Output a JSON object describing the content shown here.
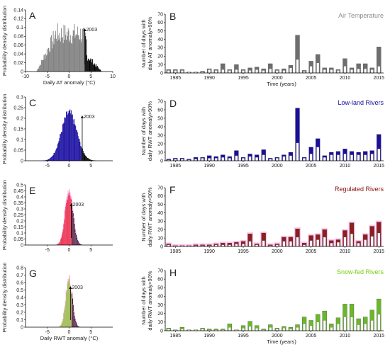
{
  "figure": {
    "panels_hist": [
      {
        "letter": "A",
        "annotation": "2003",
        "xlabel": "Daily AT anomaly (°C)",
        "ylabel": "Probability density distribution",
        "xlim": [
          -10,
          10
        ],
        "xticks": [
          -10,
          -5,
          0,
          5,
          10
        ],
        "xtick_labels": [
          "-10",
          "-5",
          "0",
          "5",
          "10"
        ],
        "ylim": [
          0,
          0.14
        ],
        "yticks": [
          0,
          0.02,
          0.04,
          0.06,
          0.08,
          0.1,
          0.12,
          0.14
        ],
        "ytick_labels": [
          "0",
          "0.02",
          "0.04",
          "0.06",
          "0.08",
          "0.1",
          "0.12",
          "0.14"
        ],
        "fill_color": "#7f7f7f",
        "tail_color": "#000000",
        "threshold": 3.6,
        "annot_x": 3.6,
        "dist": {
          "type": "noisy-trapezoid",
          "peak": 0.11,
          "lo": -7.5,
          "hi": 7.5
        }
      },
      {
        "letter": "C",
        "annotation": "2003",
        "xlabel": "",
        "ylabel": "Probability density distribution",
        "xlim": [
          -10,
          10
        ],
        "xticks": [
          -5,
          0,
          5
        ],
        "xtick_labels": [
          "-5",
          "0",
          "5"
        ],
        "ylim": [
          0,
          0.3
        ],
        "yticks": [
          0,
          0.05,
          0.1,
          0.15,
          0.2,
          0.25,
          0.3
        ],
        "ytick_labels": [
          "0",
          "0.05",
          "0.1",
          "0.15",
          "0.2",
          "0.25",
          "0.3"
        ],
        "fill_color": "#1a0fa0",
        "tail_color": "#000000",
        "threshold": 2.8,
        "annot_x": 3.0,
        "dist": {
          "type": "gauss",
          "peak": 0.225,
          "sigma": 1.8,
          "mean": 0
        }
      },
      {
        "letter": "E",
        "annotation": "2003",
        "xlabel": "",
        "ylabel": "Probability density distribution",
        "xlim": [
          -10,
          10
        ],
        "xticks": [
          -5,
          0,
          5
        ],
        "xtick_labels": [
          "-5",
          "0",
          "5"
        ],
        "ylim": [
          0,
          0.5
        ],
        "yticks": [
          0,
          0.05,
          0.1,
          0.15,
          0.2,
          0.25,
          0.3,
          0.35,
          0.4,
          0.45,
          0.5
        ],
        "ytick_labels": [
          "0",
          "0.05",
          "0.1",
          "0.15",
          "0.2",
          "0.25",
          "0.3",
          "0.35",
          "0.4",
          "0.45",
          "0.5"
        ],
        "fill_color": "#e00000",
        "tail_color": "#000000",
        "threshold": 0.6,
        "annot_x": 0.5,
        "halo_color": "#ff9be0",
        "dist": {
          "type": "gauss",
          "peak": 0.44,
          "sigma": 0.9,
          "mean": 0
        }
      },
      {
        "letter": "G",
        "annotation": "2003",
        "xlabel": "Daily RWT anomaly (°C)",
        "ylabel": "Probability density distribution",
        "xlim": [
          -10,
          10
        ],
        "xticks": [
          -5,
          0,
          5
        ],
        "xtick_labels": [
          "-5",
          "0",
          "5"
        ],
        "ylim": [
          0,
          0.8
        ],
        "yticks": [
          0,
          0.1,
          0.2,
          0.3,
          0.4,
          0.5,
          0.6,
          0.7,
          0.8
        ],
        "ytick_labels": [
          "0",
          "0.1",
          "0.2",
          "0.3",
          "0.4",
          "0.5",
          "0.6",
          "0.7",
          "0.8"
        ],
        "fill_color": "#66dd00",
        "tail_color": "#000000",
        "threshold": 0.6,
        "annot_x": 0.3,
        "halo_color": "#ff9be0",
        "dist": {
          "type": "gauss",
          "peak": 0.62,
          "sigma": 0.75,
          "mean": 0
        }
      }
    ],
    "panels_bar": [
      {
        "letter": "B",
        "title": "Air Temperature",
        "title_color": "#8c8c8c",
        "ylabel_lines": [
          "Number of days with",
          "daily AT anomaly>90%"
        ],
        "xlabel": "Time (years)",
        "ylim": [
          0,
          70
        ],
        "yticks": [
          0,
          10,
          20,
          30,
          40,
          50,
          60,
          70
        ],
        "fill_color": "#6e6e6e",
        "light_color": "#ffffff",
        "years": [
          1984,
          1985,
          1986,
          1987,
          1988,
          1989,
          1990,
          1991,
          1992,
          1993,
          1994,
          1995,
          1996,
          1997,
          1998,
          1999,
          2000,
          2001,
          2002,
          2003,
          2004,
          2005,
          2006,
          2007,
          2008,
          2009,
          2010,
          2011,
          2012,
          2013,
          2014,
          2015
        ],
        "totals": [
          4,
          4,
          4,
          1,
          1,
          2,
          5,
          4,
          11,
          4,
          10,
          4,
          6,
          7,
          5,
          11,
          4,
          5,
          9,
          45,
          3,
          14,
          22,
          6,
          6,
          4,
          17,
          6,
          11,
          11,
          6,
          31
        ],
        "inner": [
          3,
          3,
          3,
          1,
          1,
          1,
          4,
          3,
          4,
          3,
          4,
          3,
          3,
          4,
          3,
          5,
          3,
          3,
          6,
          16,
          2,
          8,
          12,
          4,
          4,
          3,
          8,
          4,
          5,
          5,
          4,
          8
        ]
      },
      {
        "letter": "D",
        "title": "Low-land Rivers",
        "title_color": "#1a0f9c",
        "ylabel_lines": [
          "Number of days with",
          "daily RWT anomaly>90%"
        ],
        "xlabel": "",
        "ylim": [
          0,
          70
        ],
        "yticks": [
          0,
          10,
          20,
          30,
          40,
          50,
          60,
          70
        ],
        "fill_color": "#1a0f9c",
        "light_color": "#ffffff",
        "years": [
          1984,
          1985,
          1986,
          1987,
          1988,
          1989,
          1990,
          1991,
          1992,
          1993,
          1994,
          1995,
          1996,
          1997,
          1998,
          1999,
          2000,
          2001,
          2002,
          2003,
          2004,
          2005,
          2006,
          2007,
          2008,
          2009,
          2010,
          2011,
          2012,
          2013,
          2014,
          2015
        ],
        "totals": [
          2,
          3,
          3,
          2,
          4,
          4,
          6,
          5,
          7,
          5,
          12,
          4,
          8,
          7,
          13,
          3,
          4,
          7,
          10,
          62,
          4,
          16,
          26,
          6,
          10,
          11,
          14,
          11,
          10,
          11,
          12,
          31
        ],
        "inner": [
          1,
          2,
          2,
          1,
          2,
          3,
          3,
          3,
          4,
          3,
          6,
          3,
          5,
          4,
          7,
          2,
          3,
          5,
          6,
          21,
          3,
          8,
          16,
          4,
          7,
          7,
          8,
          7,
          7,
          7,
          8,
          14
        ]
      },
      {
        "letter": "F",
        "title": "Regulated Rivers",
        "title_color": "#8c1010",
        "ylabel_lines": [
          "Number of days with",
          "daily RWT anomaly>90%"
        ],
        "xlabel": "",
        "ylim": [
          0,
          70
        ],
        "yticks": [
          0,
          10,
          20,
          30,
          40,
          50,
          60,
          70
        ],
        "fill_color": "#8c1f1f",
        "light_color": "#ffffff",
        "halo_color": "#ffb3e6",
        "years": [
          1984,
          1985,
          1986,
          1987,
          1988,
          1989,
          1990,
          1991,
          1992,
          1993,
          1994,
          1995,
          1996,
          1997,
          1998,
          1999,
          2000,
          2001,
          2002,
          2003,
          2004,
          2005,
          2006,
          2007,
          2008,
          2009,
          2010,
          2011,
          2012,
          2013,
          2014,
          2015
        ],
        "totals": [
          3,
          1,
          1,
          1,
          2,
          2,
          2,
          3,
          4,
          4,
          5,
          6,
          15,
          3,
          16,
          2,
          3,
          11,
          11,
          21,
          4,
          13,
          14,
          20,
          7,
          8,
          19,
          28,
          6,
          14,
          24,
          29
        ],
        "inner": [
          2,
          1,
          1,
          1,
          1,
          1,
          1,
          2,
          2,
          2,
          3,
          3,
          6,
          2,
          7,
          1,
          2,
          6,
          6,
          11,
          2,
          7,
          8,
          11,
          4,
          5,
          11,
          15,
          4,
          8,
          12,
          16
        ]
      },
      {
        "letter": "H",
        "title": "Snow-fed Rivers",
        "title_color": "#77cc11",
        "ylabel_lines": [
          "Number of days with",
          "daily RWT anomaly>90%"
        ],
        "xlabel": "Time (years)",
        "ylim": [
          0,
          70
        ],
        "yticks": [
          0,
          10,
          20,
          30,
          40,
          50,
          60,
          70
        ],
        "fill_color": "#6ab82a",
        "light_color": "#ffffff",
        "years": [
          1984,
          1985,
          1986,
          1987,
          1988,
          1989,
          1990,
          1991,
          1992,
          1993,
          1994,
          1995,
          1996,
          1997,
          1998,
          1999,
          2000,
          2001,
          2002,
          2003,
          2004,
          2005,
          2006,
          2007,
          2008,
          2009,
          2010,
          2011,
          2012,
          2013,
          2014,
          2015
        ],
        "totals": [
          3,
          1,
          4,
          1,
          1,
          3,
          2,
          2,
          2,
          8,
          1,
          6,
          11,
          6,
          2,
          7,
          3,
          5,
          4,
          7,
          16,
          12,
          19,
          23,
          8,
          15,
          31,
          31,
          14,
          16,
          24,
          37
        ],
        "inner": [
          2,
          1,
          2,
          1,
          1,
          2,
          1,
          1,
          1,
          4,
          1,
          3,
          5,
          3,
          1,
          4,
          2,
          3,
          2,
          4,
          8,
          6,
          10,
          12,
          4,
          8,
          16,
          16,
          7,
          8,
          12,
          19
        ]
      }
    ]
  },
  "chart_data": [
    {
      "type": "area",
      "title": "",
      "xlabel": "Daily AT anomaly (°C)",
      "ylabel": "Probability density distribution",
      "xlim": [
        -10,
        10
      ],
      "ylim": [
        0,
        0.14
      ],
      "annotation": "2003",
      "annotation_x": 3.6,
      "shape": "broad distribution peaking ~0.11 between -7.5 and 7.5"
    },
    {
      "type": "bar",
      "title": "Air Temperature",
      "xlabel": "Time (years)",
      "ylabel": "Number of days with daily AT anomaly>90%",
      "x": [
        1984,
        1985,
        1986,
        1987,
        1988,
        1989,
        1990,
        1991,
        1992,
        1993,
        1994,
        1995,
        1996,
        1997,
        1998,
        1999,
        2000,
        2001,
        2002,
        2003,
        2004,
        2005,
        2006,
        2007,
        2008,
        2009,
        2010,
        2011,
        2012,
        2013,
        2014,
        2015
      ],
      "values": [
        4,
        4,
        4,
        1,
        1,
        2,
        5,
        4,
        11,
        4,
        10,
        4,
        6,
        7,
        5,
        11,
        4,
        5,
        9,
        45,
        3,
        14,
        22,
        6,
        6,
        4,
        17,
        6,
        11,
        11,
        6,
        31
      ],
      "ylim": [
        0,
        70
      ]
    },
    {
      "type": "area",
      "title": "",
      "xlabel": "",
      "ylabel": "Probability density distribution",
      "xlim": [
        -10,
        10
      ],
      "ylim": [
        0,
        0.3
      ],
      "annotation": "2003",
      "annotation_x": 3.0,
      "shape": "gaussian peak ~0.225"
    },
    {
      "type": "bar",
      "title": "Low-land Rivers",
      "xlabel": "",
      "ylabel": "Number of days with daily RWT anomaly>90%",
      "x": [
        1984,
        1985,
        1986,
        1987,
        1988,
        1989,
        1990,
        1991,
        1992,
        1993,
        1994,
        1995,
        1996,
        1997,
        1998,
        1999,
        2000,
        2001,
        2002,
        2003,
        2004,
        2005,
        2006,
        2007,
        2008,
        2009,
        2010,
        2011,
        2012,
        2013,
        2014,
        2015
      ],
      "values": [
        2,
        3,
        3,
        2,
        4,
        4,
        6,
        5,
        7,
        5,
        12,
        4,
        8,
        7,
        13,
        3,
        4,
        7,
        10,
        62,
        4,
        16,
        26,
        6,
        10,
        11,
        14,
        11,
        10,
        11,
        12,
        31
      ],
      "ylim": [
        0,
        70
      ]
    },
    {
      "type": "area",
      "title": "",
      "xlabel": "",
      "ylabel": "Probability density distribution",
      "xlim": [
        -10,
        10
      ],
      "ylim": [
        0,
        0.5
      ],
      "annotation": "2003",
      "annotation_x": 0.5,
      "shape": "narrow gaussian peak ~0.44"
    },
    {
      "type": "bar",
      "title": "Regulated Rivers",
      "xlabel": "",
      "ylabel": "Number of days with daily RWT anomaly>90%",
      "x": [
        1984,
        1985,
        1986,
        1987,
        1988,
        1989,
        1990,
        1991,
        1992,
        1993,
        1994,
        1995,
        1996,
        1997,
        1998,
        1999,
        2000,
        2001,
        2002,
        2003,
        2004,
        2005,
        2006,
        2007,
        2008,
        2009,
        2010,
        2011,
        2012,
        2013,
        2014,
        2015
      ],
      "values": [
        3,
        1,
        1,
        1,
        2,
        2,
        2,
        3,
        4,
        4,
        5,
        6,
        15,
        3,
        16,
        2,
        3,
        11,
        11,
        21,
        4,
        13,
        14,
        20,
        7,
        8,
        19,
        28,
        6,
        14,
        24,
        29
      ],
      "ylim": [
        0,
        70
      ]
    },
    {
      "type": "area",
      "title": "",
      "xlabel": "Daily RWT anomaly (°C)",
      "ylabel": "Probability density distribution",
      "xlim": [
        -10,
        10
      ],
      "ylim": [
        0,
        0.8
      ],
      "annotation": "2003",
      "annotation_x": 0.3,
      "shape": "narrow gaussian peak ~0.62"
    },
    {
      "type": "bar",
      "title": "Snow-fed Rivers",
      "xlabel": "Time (years)",
      "ylabel": "Number of days with daily RWT anomaly>90%",
      "x": [
        1984,
        1985,
        1986,
        1987,
        1988,
        1989,
        1990,
        1991,
        1992,
        1993,
        1994,
        1995,
        1996,
        1997,
        1998,
        1999,
        2000,
        2001,
        2002,
        2003,
        2004,
        2005,
        2006,
        2007,
        2008,
        2009,
        2010,
        2011,
        2012,
        2013,
        2014,
        2015
      ],
      "values": [
        3,
        1,
        4,
        1,
        1,
        3,
        2,
        2,
        2,
        8,
        1,
        6,
        11,
        6,
        2,
        7,
        3,
        5,
        4,
        7,
        16,
        12,
        19,
        23,
        8,
        15,
        31,
        31,
        14,
        16,
        24,
        37
      ],
      "ylim": [
        0,
        70
      ]
    }
  ]
}
